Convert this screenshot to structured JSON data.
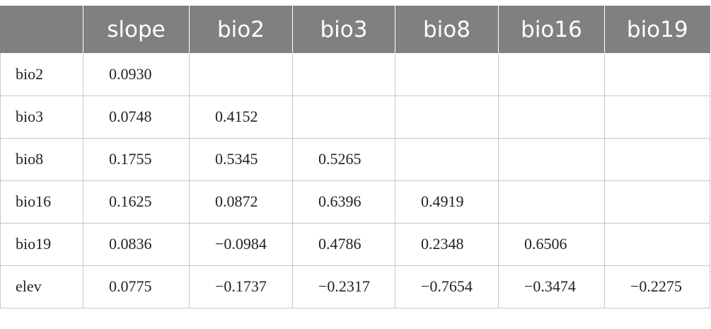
{
  "table": {
    "headers": [
      "",
      "slope",
      "bio2",
      "bio3",
      "bio8",
      "bio16",
      "bio19"
    ],
    "rows": [
      {
        "label": "bio2",
        "cells": [
          "0.0930",
          "",
          "",
          "",
          "",
          ""
        ]
      },
      {
        "label": "bio3",
        "cells": [
          "0.0748",
          "0.4152",
          "",
          "",
          "",
          ""
        ]
      },
      {
        "label": "bio8",
        "cells": [
          "0.1755",
          "0.5345",
          "0.5265",
          "",
          "",
          ""
        ]
      },
      {
        "label": "bio16",
        "cells": [
          "0.1625",
          "0.0872",
          "0.6396",
          "0.4919",
          "",
          ""
        ]
      },
      {
        "label": "bio19",
        "cells": [
          "0.0836",
          "−0.0984",
          "0.4786",
          "0.2348",
          "0.6506",
          ""
        ]
      },
      {
        "label": "elev",
        "cells": [
          "0.0775",
          "−0.1737",
          "−0.2317",
          "−0.7654",
          "−0.3474",
          "−0.2275"
        ]
      }
    ]
  },
  "colors": {
    "header_bg": "#808080",
    "header_text": "#ffffff",
    "grid": "#c8c8c8"
  }
}
